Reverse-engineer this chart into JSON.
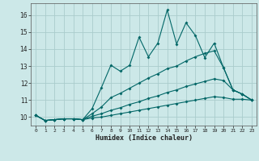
{
  "xlabel": "Humidex (Indice chaleur)",
  "background_color": "#cce8e8",
  "grid_color": "#aacccc",
  "line_color": "#006666",
  "xlim": [
    -0.5,
    23.5
  ],
  "ylim": [
    9.5,
    16.7
  ],
  "xticks": [
    0,
    1,
    2,
    3,
    4,
    5,
    6,
    7,
    8,
    9,
    10,
    11,
    12,
    13,
    14,
    15,
    16,
    17,
    18,
    19,
    20,
    21,
    22,
    23
  ],
  "yticks": [
    10,
    11,
    12,
    13,
    14,
    15,
    16
  ],
  "series": [
    [
      10.1,
      9.8,
      9.85,
      9.9,
      9.9,
      9.85,
      10.5,
      11.75,
      13.05,
      12.7,
      13.05,
      14.7,
      13.55,
      14.35,
      16.3,
      14.3,
      15.55,
      14.8,
      13.5,
      14.35,
      12.9,
      11.6,
      11.35,
      11.0
    ],
    [
      10.1,
      9.8,
      9.85,
      9.9,
      9.9,
      9.85,
      10.2,
      10.6,
      11.15,
      11.4,
      11.7,
      12.0,
      12.3,
      12.55,
      12.85,
      13.0,
      13.3,
      13.55,
      13.75,
      13.9,
      12.9,
      11.6,
      11.35,
      11.0
    ],
    [
      10.1,
      9.8,
      9.85,
      9.9,
      9.9,
      9.85,
      10.05,
      10.2,
      10.4,
      10.55,
      10.75,
      10.9,
      11.1,
      11.25,
      11.45,
      11.6,
      11.8,
      11.95,
      12.1,
      12.25,
      12.15,
      11.6,
      11.35,
      11.0
    ],
    [
      10.1,
      9.8,
      9.85,
      9.9,
      9.9,
      9.85,
      9.95,
      10.0,
      10.1,
      10.2,
      10.3,
      10.4,
      10.5,
      10.6,
      10.7,
      10.8,
      10.9,
      11.0,
      11.1,
      11.2,
      11.15,
      11.05,
      11.05,
      11.0
    ]
  ]
}
